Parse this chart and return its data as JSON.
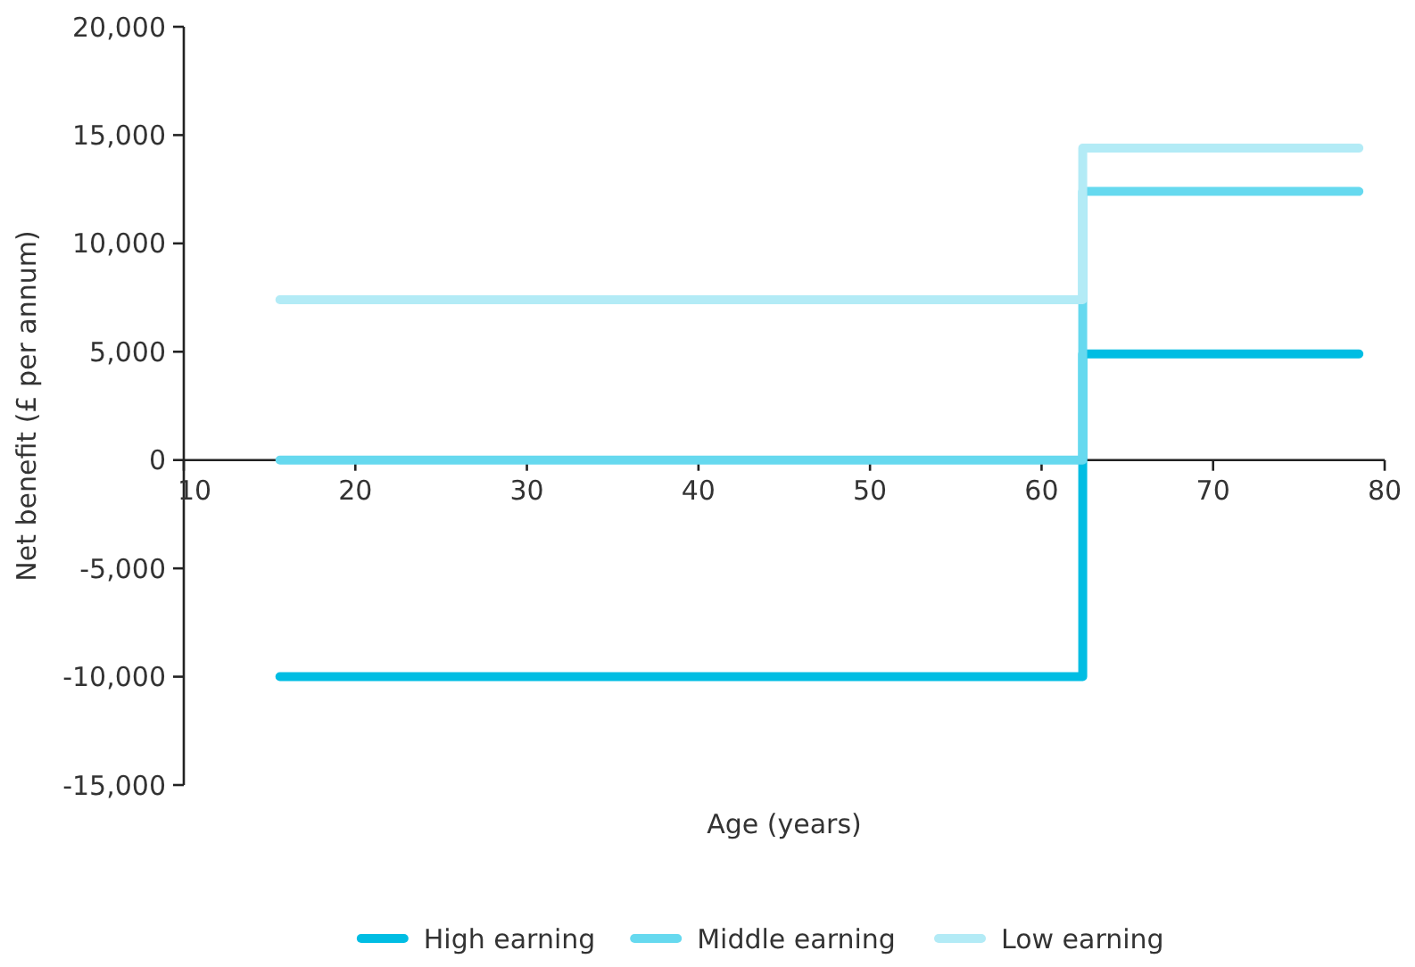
{
  "chart_data": {
    "type": "step",
    "xlabel": "Age (years)",
    "ylabel": "Net benefit (£ per annum)",
    "xlim": [
      10,
      80
    ],
    "xticks": [
      10,
      20,
      30,
      40,
      50,
      60,
      70,
      80
    ],
    "ylim": [
      -15000,
      20000
    ],
    "yticks": [
      {
        "value": -15000,
        "label": "-15,000"
      },
      {
        "value": -10000,
        "label": "-10,000"
      },
      {
        "value": -5000,
        "label": "-5,000"
      },
      0,
      {
        "value": 5000,
        "label": "5,000"
      },
      {
        "value": 10000,
        "label": "10,000"
      },
      {
        "value": 15000,
        "label": "15,000"
      },
      {
        "value": 20000,
        "label": "20,000"
      }
    ],
    "grid": false,
    "legend": "bottom",
    "marker": "none",
    "line_style": "solid",
    "series": [
      {
        "name": "High earning",
        "color": "#00bde3",
        "x": [
          15.6,
          62.4,
          78.5
        ],
        "values": [
          -10000,
          4900,
          4900
        ]
      },
      {
        "name": "Middle earning",
        "color": "#66d9ef",
        "x": [
          15.6,
          62.4,
          78.5
        ],
        "values": [
          0,
          12400,
          12400
        ]
      },
      {
        "name": "Low earning",
        "color": "#b3ebf6",
        "x": [
          15.6,
          62.4,
          78.5
        ],
        "values": [
          7400,
          14400,
          14400
        ]
      }
    ]
  }
}
